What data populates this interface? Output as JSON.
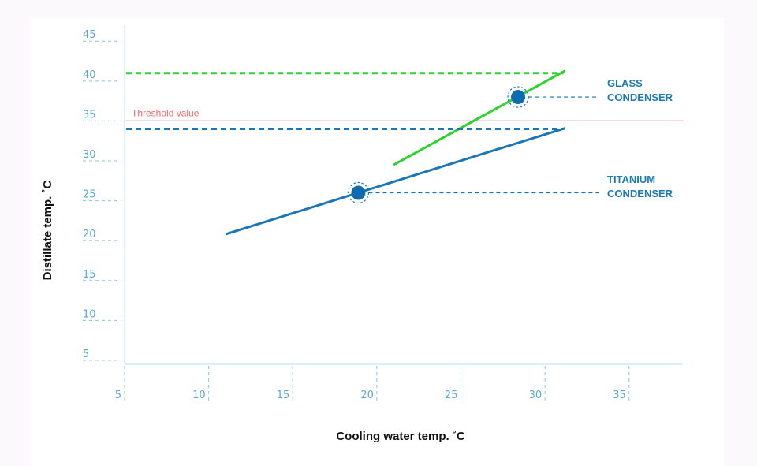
{
  "chart_data": {
    "type": "line",
    "xlabel": "Cooling water temp. ˚C",
    "ylabel": "Distillate temp. ˚C",
    "xlim": [
      5,
      38.2
    ],
    "ylim": [
      4.5,
      47
    ],
    "x_ticks": [
      "5",
      "10",
      "15",
      "20",
      "25",
      "30",
      "35"
    ],
    "y_ticks": [
      "5",
      "10",
      "15",
      "20",
      "25",
      "30",
      "35",
      "40",
      "45"
    ],
    "grid": false,
    "threshold": {
      "label": "Threshold value",
      "value": 35,
      "color": "#f26b6b"
    },
    "series": [
      {
        "name": "GLASS CONDENSER",
        "color": "#2fd32f",
        "x": [
          21,
          31.2
        ],
        "y": [
          29.5,
          41.3
        ],
        "max_line": 41,
        "marker": {
          "x": 28.4,
          "y": 38
        }
      },
      {
        "name": "TITANIUM CONDENSER",
        "color": "#1a76b5",
        "x": [
          11,
          31.2
        ],
        "y": [
          20.8,
          34.1
        ],
        "max_line": 34,
        "marker": {
          "x": 18.9,
          "y": 26
        }
      }
    ],
    "series_label_lines": [
      [
        "GLASS",
        "CONDENSER"
      ],
      [
        "TITANIUM",
        "CONDENSER"
      ]
    ]
  }
}
